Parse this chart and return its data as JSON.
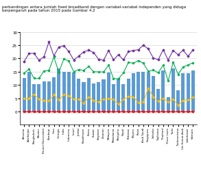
{
  "countries": [
    "Armenia",
    "Azerbaijan",
    "Bangladesh",
    "Bhutan",
    "Brunei Darussalam",
    "Kamboja",
    "Cina",
    "Georgia",
    "India",
    "Indonesia",
    "Israel",
    "Jordan",
    "Kazakhstan",
    "Korea",
    "Kuwait",
    "Kirgistan",
    "Libanon",
    "Malaysia",
    "Makedonia",
    "Mongolia",
    "Nepal",
    "Pakistan",
    "Filipina",
    "Rusia",
    "Arab Saudi",
    "Singapura",
    "Srilanka",
    "Tajikistan",
    "Thailand",
    "Timor Leste",
    "Turki",
    "Turkmenistan",
    "Uni Emirat Arab",
    "Uzbekistan",
    "Vietnam"
  ],
  "ln_fixed_broadband": [
    12.5,
    15.0,
    10.2,
    10.3,
    11.2,
    11.3,
    13.0,
    16.2,
    14.9,
    14.9,
    14.8,
    12.4,
    11.0,
    12.7,
    10.5,
    11.0,
    12.2,
    14.8,
    10.2,
    12.4,
    10.2,
    12.4,
    14.3,
    14.9,
    15.0,
    14.7,
    13.3,
    8.5,
    15.5,
    5.5,
    16.2,
    8.0,
    14.4,
    14.3,
    15.5
  ],
  "ln_investment": [
    18.8,
    21.9,
    21.9,
    19.3,
    20.6,
    26.2,
    21.0,
    24.3,
    24.8,
    22.6,
    19.4,
    20.9,
    22.5,
    23.1,
    22.2,
    19.7,
    19.3,
    23.0,
    19.5,
    21.4,
    19.5,
    22.6,
    23.0,
    23.3,
    25.0,
    23.6,
    20.2,
    19.5,
    23.3,
    19.4,
    23.0,
    21.4,
    23.1,
    20.8,
    23.2
  ],
  "ln_ipm": [
    0.0,
    0.0,
    0.0,
    0.0,
    0.0,
    0.0,
    0.0,
    0.0,
    0.0,
    0.0,
    0.0,
    0.0,
    0.0,
    0.0,
    0.0,
    0.0,
    0.0,
    0.0,
    0.0,
    0.0,
    0.0,
    0.0,
    0.0,
    0.0,
    0.0,
    0.0,
    0.0,
    0.0,
    0.0,
    0.0,
    0.0,
    0.0,
    0.0,
    0.0,
    0.0
  ],
  "ln_kepadatan": [
    5.0,
    5.0,
    6.5,
    4.5,
    4.2,
    4.0,
    6.3,
    4.3,
    6.3,
    6.0,
    4.5,
    4.5,
    3.0,
    5.5,
    4.2,
    3.6,
    4.7,
    4.8,
    4.5,
    2.7,
    4.5,
    5.6,
    5.5,
    3.3,
    3.5,
    8.8,
    5.5,
    3.8,
    5.0,
    3.5,
    4.7,
    2.2,
    4.2,
    4.3,
    5.3
  ],
  "ln_populasi": [
    14.5,
    15.9,
    12.5,
    12.5,
    15.2,
    15.5,
    20.5,
    14.8,
    19.8,
    19.0,
    15.0,
    15.8,
    15.5,
    17.0,
    15.0,
    14.9,
    14.9,
    17.4,
    12.4,
    12.3,
    14.6,
    18.5,
    18.2,
    19.2,
    18.2,
    15.1,
    15.6,
    14.6,
    17.5,
    11.5,
    18.5,
    14.0,
    16.8,
    17.5,
    18.4
  ],
  "bar_color": "#5b9bd5",
  "investment_color": "#7030a0",
  "ipm_color": "#ff0000",
  "kepadatan_color": "#ffc000",
  "populasi_color": "#00b050",
  "legend_bg": "#d9e8d2",
  "ylim": [
    -5,
    30
  ],
  "yticks": [
    0,
    5,
    10,
    15,
    20,
    25,
    30
  ],
  "header": "perbandingan antara jumlah fixed broadband dengan variabel-variabel independen yang diduga berpengaruh pada tahun 2015 pada Gambar 4.2"
}
